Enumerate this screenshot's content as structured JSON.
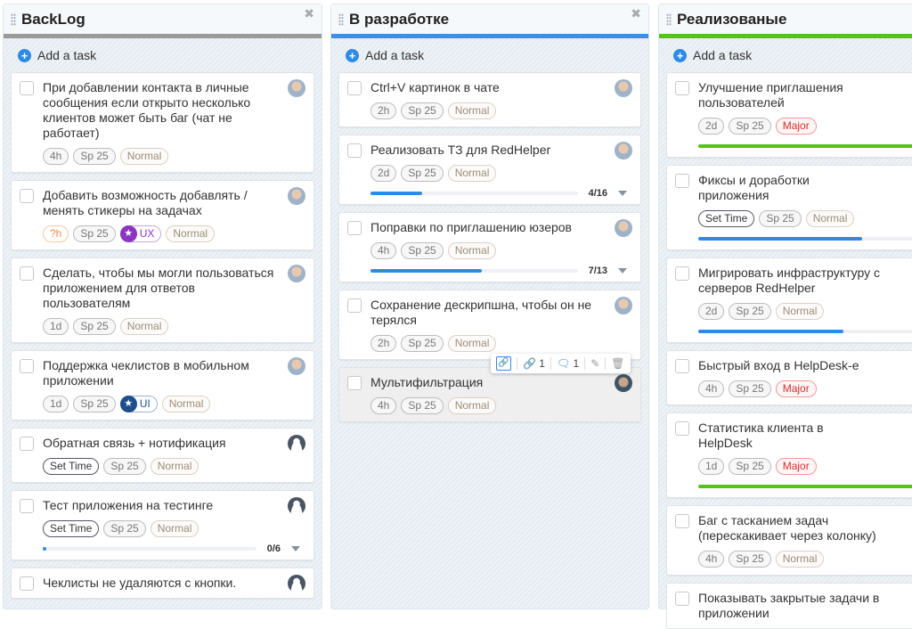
{
  "colors": {
    "backlog": "#9a9a9a",
    "dev": "#3b8fe6",
    "done": "#52c41a",
    "accent": "#2d8ae6"
  },
  "columns": [
    {
      "title": "BackLog",
      "add_label": "Add a task",
      "bar": "#9a9a9a",
      "closable": true,
      "cards": [
        {
          "title": "При добавлении контакта в личные сообщения если открыто несколько клиентов может быть баг (чат не работает)",
          "avatar": "photo",
          "tags": [
            {
              "t": "4h"
            },
            {
              "t": "Sp 25"
            },
            {
              "t": "Normal",
              "k": "norm"
            }
          ]
        },
        {
          "title": "Добавить возможность добавлять / менять стикеры на задачах",
          "avatar": "photo",
          "tags": [
            {
              "t": "?h",
              "k": "qh"
            },
            {
              "t": "Sp 25"
            },
            {
              "t": "UX",
              "k": "ux"
            },
            {
              "t": "Normal",
              "k": "norm"
            }
          ]
        },
        {
          "title": "Сделать, чтобы мы могли пользоваться приложением для ответов пользователям",
          "avatar": "photo",
          "tags": [
            {
              "t": "1d"
            },
            {
              "t": "Sp 25"
            },
            {
              "t": "Normal",
              "k": "norm"
            }
          ]
        },
        {
          "title": "Поддержка чеклистов в мобильном приложении",
          "avatar": "photo",
          "tags": [
            {
              "t": "1d"
            },
            {
              "t": "Sp 25"
            },
            {
              "t": "UI",
              "k": "ui"
            },
            {
              "t": "Normal",
              "k": "norm"
            }
          ]
        },
        {
          "title": "Обратная связь + нотификация",
          "avatar": "dark",
          "tags": [
            {
              "t": "Set Time",
              "k": "set"
            },
            {
              "t": "Sp 25"
            },
            {
              "t": "Normal",
              "k": "norm"
            }
          ]
        },
        {
          "title": "Тест приложения на тестинге",
          "avatar": "dark",
          "tags": [
            {
              "t": "Set Time",
              "k": "set"
            },
            {
              "t": "Sp 25"
            },
            {
              "t": "Normal",
              "k": "norm"
            }
          ],
          "progress": {
            "done": 0,
            "total": 6,
            "label": "0/6",
            "expand": true
          }
        },
        {
          "title": "Чеклисты не удаляются с кнопки.",
          "avatar": "dark",
          "tags": []
        }
      ]
    },
    {
      "title": "В разработке",
      "add_label": "Add a task",
      "bar": "#3b8fe6",
      "closable": true,
      "cards": [
        {
          "title": "Ctrl+V картинок в чате",
          "avatar": "photo",
          "tags": [
            {
              "t": "2h"
            },
            {
              "t": "Sp 25"
            },
            {
              "t": "Normal",
              "k": "norm"
            }
          ]
        },
        {
          "title": "Реализовать ТЗ для RedHelper",
          "avatar": "photo",
          "tags": [
            {
              "t": "2d"
            },
            {
              "t": "Sp 25"
            },
            {
              "t": "Normal",
              "k": "norm"
            }
          ],
          "progress": {
            "done": 4,
            "total": 16,
            "label": "4/16",
            "expand": true
          }
        },
        {
          "title": "Поправки по приглашению юзеров",
          "avatar": "photo",
          "tags": [
            {
              "t": "4h"
            },
            {
              "t": "Sp 25"
            },
            {
              "t": "Normal",
              "k": "norm"
            }
          ],
          "progress": {
            "done": 7,
            "total": 13,
            "label": "7/13",
            "expand": true
          }
        },
        {
          "title": "Сохранение дескрипшна, чтобы он не терялся",
          "avatar": "photo",
          "tags": [
            {
              "t": "2h"
            },
            {
              "t": "Sp 25"
            },
            {
              "t": "Normal",
              "k": "norm"
            }
          ]
        },
        {
          "title": "Мультифильтрация",
          "avatar": "ph2",
          "highlight": true,
          "tags": [
            {
              "t": "4h"
            },
            {
              "t": "Sp 25"
            },
            {
              "t": "Normal",
              "k": "norm"
            }
          ]
        }
      ]
    },
    {
      "title": "Реализованые",
      "add_label": "Add a task",
      "bar": "#52c41a",
      "closable": false,
      "cards": [
        {
          "title": "Улучшение приглашения пользователей",
          "avatar": "none",
          "tags": [
            {
              "t": "2d"
            },
            {
              "t": "Sp 25"
            },
            {
              "t": "Major",
              "k": "major"
            }
          ],
          "progress": {
            "done": 1,
            "total": 1,
            "color": "green"
          }
        },
        {
          "title": "Фиксы и доработки приложения",
          "avatar": "none",
          "tags": [
            {
              "t": "Set Time",
              "k": "set"
            },
            {
              "t": "Sp 25"
            },
            {
              "t": "Normal",
              "k": "norm"
            }
          ],
          "progress": {
            "done": 3,
            "total": 4
          }
        },
        {
          "title": "Мигрировать инфраструктуру с серверов RedHelper",
          "avatar": "none",
          "tags": [
            {
              "t": "2d"
            },
            {
              "t": "Sp 25"
            },
            {
              "t": "Normal",
              "k": "norm"
            }
          ],
          "progress": {
            "done": 2,
            "total": 3
          }
        },
        {
          "title": "Быстрый вход в HelpDesk-е",
          "avatar": "none",
          "tags": [
            {
              "t": "4h"
            },
            {
              "t": "Sp 25"
            },
            {
              "t": "Major",
              "k": "major"
            }
          ]
        },
        {
          "title": "Статистика клиента в HelpDesk",
          "avatar": "none",
          "tags": [
            {
              "t": "1d"
            },
            {
              "t": "Sp 25"
            },
            {
              "t": "Major",
              "k": "major"
            }
          ],
          "progress": {
            "done": 1,
            "total": 1,
            "color": "green"
          }
        },
        {
          "title": "Баг с тасканием задач (перескакивает через колонку)",
          "avatar": "none",
          "tags": [
            {
              "t": "4h"
            },
            {
              "t": "Sp 25"
            },
            {
              "t": "Normal",
              "k": "norm"
            }
          ]
        },
        {
          "title": "Показывать закрытые задачи в приложении",
          "avatar": "none",
          "tags": []
        }
      ]
    }
  ],
  "hover_toolbar": {
    "links": "1",
    "comments": "1"
  }
}
